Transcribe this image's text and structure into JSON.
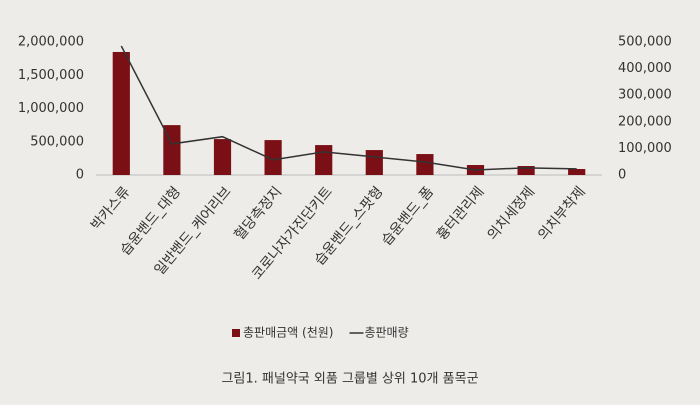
{
  "chart_data": {
    "type": "combo",
    "caption": "그림1. 패널약국 외품 그룹별 상위 10개 품목군",
    "categories": [
      "박카스류",
      "습윤밴드_대형",
      "일반밴드_케어리브",
      "혈당측정지",
      "코로나자가진단키트",
      "습윤밴드_스팟형",
      "습윤밴드_폼",
      "흉터관리제",
      "의치세정제",
      "의치부착제"
    ],
    "series": [
      {
        "name": "총판매금액 (천원)",
        "type": "bar",
        "color": "#7a1015",
        "values": [
          1850000,
          750000,
          540000,
          525000,
          450000,
          375000,
          315000,
          150000,
          135000,
          90000
        ]
      },
      {
        "name": "총판매량",
        "type": "line",
        "axis": "y2",
        "color": "#333333",
        "values": [
          485000,
          117000,
          144000,
          57000,
          87000,
          68000,
          49000,
          19000,
          27000,
          23000
        ]
      }
    ],
    "ylim": [
      0,
      2000000
    ],
    "yticks": [
      0,
      {
        "value": 500000,
        "label": "500,000"
      },
      {
        "value": 1000000,
        "label": "1,000,000"
      },
      {
        "value": 1500000,
        "label": "1,500,000"
      },
      {
        "value": 2000000,
        "label": "2,000,000"
      }
    ],
    "y2lim": [
      0,
      500000
    ],
    "y2ticks": [
      0,
      {
        "value": 100000,
        "label": "100,000"
      },
      {
        "value": 200000,
        "label": "200,000"
      },
      {
        "value": 300000,
        "label": "300,000"
      },
      {
        "value": 400000,
        "label": "400,000"
      },
      {
        "value": 500000,
        "label": "500,000"
      }
    ],
    "grid": false,
    "legend": "bottom"
  }
}
